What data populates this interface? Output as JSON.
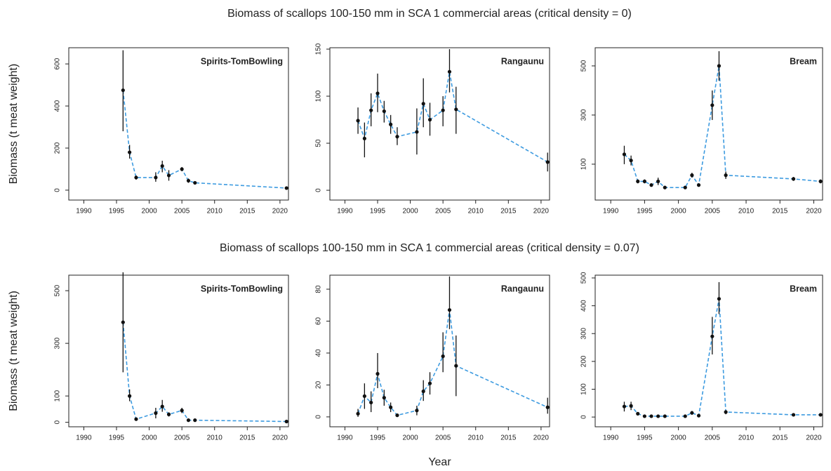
{
  "chart_data": [
    {
      "type": "line",
      "suptitle": "Biomass of scallops 100-150 mm in SCA 1 commercial areas (critical density = 0)",
      "ylabel": "Biomass (t meat weight)",
      "title": "Spirits-TomBowling",
      "color": "#3d9be0",
      "x": [
        1996,
        1997,
        1998,
        2001,
        2002,
        2003,
        2005,
        2006,
        2007,
        2021
      ],
      "values": [
        475,
        180,
        60,
        60,
        115,
        70,
        100,
        45,
        35,
        10
      ],
      "lower": [
        280,
        150,
        50,
        40,
        85,
        45,
        90,
        35,
        28,
        2
      ],
      "upper": [
        665,
        215,
        70,
        85,
        140,
        95,
        110,
        55,
        42,
        18
      ],
      "xlim": [
        1987.7,
        2021.3
      ],
      "xticks": [
        1990,
        1995,
        2000,
        2005,
        2010,
        2015,
        2020
      ],
      "ylim": [
        -47,
        677
      ],
      "yticks": [
        0,
        200,
        400,
        600
      ]
    },
    {
      "type": "line",
      "title": "Rangaunu",
      "color": "#3d9be0",
      "x": [
        1992,
        1993,
        1994,
        1995,
        1996,
        1997,
        1998,
        2001,
        2002,
        2003,
        2005,
        2006,
        2007,
        2021
      ],
      "values": [
        74,
        55,
        85,
        103,
        84,
        70,
        57,
        62,
        92,
        75,
        85,
        126,
        86,
        30
      ],
      "lower": [
        60,
        35,
        68,
        83,
        72,
        60,
        48,
        38,
        67,
        58,
        68,
        104,
        60,
        20
      ],
      "upper": [
        88,
        72,
        103,
        124,
        95,
        80,
        67,
        87,
        119,
        93,
        100,
        150,
        110,
        40
      ],
      "xlim": [
        1987.7,
        2021.3
      ],
      "xticks": [
        1990,
        1995,
        2000,
        2005,
        2010,
        2015,
        2020
      ],
      "ylim": [
        -10.4,
        151.5
      ],
      "yticks": [
        0,
        50,
        100,
        150
      ]
    },
    {
      "type": "line",
      "title": "Bream",
      "color": "#3d9be0",
      "x": [
        1992,
        1993,
        1994,
        1995,
        1996,
        1997,
        1998,
        2001,
        2002,
        2003,
        2005,
        2006,
        2007,
        2017,
        2021
      ],
      "values": [
        140,
        115,
        30,
        30,
        15,
        30,
        5,
        5,
        55,
        15,
        340,
        500,
        55,
        40,
        30
      ],
      "lower": [
        100,
        95,
        22,
        22,
        8,
        15,
        1,
        1,
        45,
        8,
        280,
        440,
        40,
        32,
        22
      ],
      "upper": [
        175,
        135,
        38,
        38,
        22,
        45,
        9,
        9,
        65,
        22,
        400,
        560,
        70,
        48,
        38
      ],
      "xlim": [
        1987.7,
        2021.3
      ],
      "xticks": [
        1990,
        1995,
        2000,
        2005,
        2010,
        2015,
        2020
      ],
      "ylim": [
        -46,
        574
      ],
      "yticks": [
        100,
        300,
        500
      ]
    },
    {
      "type": "line",
      "suptitle": "Biomass of scallops 100-150 mm in SCA 1 commercial areas (critical density = 0.07)",
      "ylabel": "Biomass (t meat weight)",
      "title": "Spirits-TomBowling",
      "color": "#3d9be0",
      "x": [
        1996,
        1997,
        1998,
        2001,
        2002,
        2003,
        2005,
        2006,
        2007,
        2021
      ],
      "values": [
        380,
        100,
        12,
        35,
        60,
        30,
        45,
        8,
        8,
        3
      ],
      "lower": [
        190,
        80,
        6,
        15,
        40,
        22,
        35,
        3,
        3,
        0
      ],
      "upper": [
        570,
        125,
        18,
        55,
        85,
        38,
        55,
        13,
        13,
        6
      ],
      "xlim": [
        1987.7,
        2021.3
      ],
      "xticks": [
        1990,
        1995,
        2000,
        2005,
        2010,
        2015,
        2020
      ],
      "ylim": [
        -17,
        559
      ],
      "yticks": [
        0,
        100,
        300,
        500
      ]
    },
    {
      "type": "line",
      "title": "Rangaunu",
      "xlabel": "Year",
      "color": "#3d9be0",
      "x": [
        1992,
        1993,
        1994,
        1995,
        1996,
        1997,
        1998,
        2001,
        2002,
        2003,
        2005,
        2006,
        2007,
        2021
      ],
      "values": [
        2,
        13,
        9,
        27,
        12,
        6,
        1,
        4,
        16,
        21,
        38,
        67,
        32,
        6
      ],
      "lower": [
        0,
        5,
        3,
        18,
        7,
        3,
        0,
        1,
        10,
        14,
        28,
        55,
        13,
        2
      ],
      "upper": [
        5,
        21,
        16,
        40,
        17,
        9,
        2,
        7,
        23,
        28,
        53,
        88,
        51,
        12
      ],
      "xlim": [
        1987.7,
        2021.3
      ],
      "xticks": [
        1990,
        1995,
        2000,
        2005,
        2010,
        2015,
        2020
      ],
      "ylim": [
        -6.2,
        88.8
      ],
      "yticks": [
        0,
        20,
        40,
        60,
        80
      ]
    },
    {
      "type": "line",
      "title": "Bream",
      "color": "#3d9be0",
      "x": [
        1992,
        1993,
        1994,
        1995,
        1996,
        1997,
        1998,
        2001,
        2002,
        2003,
        2005,
        2006,
        2007,
        2017,
        2021
      ],
      "values": [
        38,
        40,
        12,
        3,
        3,
        3,
        3,
        3,
        15,
        5,
        290,
        425,
        18,
        8,
        8
      ],
      "lower": [
        20,
        25,
        6,
        0,
        0,
        0,
        0,
        0,
        8,
        1,
        225,
        370,
        10,
        4,
        4
      ],
      "upper": [
        55,
        55,
        18,
        6,
        6,
        6,
        6,
        6,
        22,
        9,
        360,
        485,
        25,
        12,
        12
      ],
      "xlim": [
        1987.7,
        2021.3
      ],
      "xticks": [
        1990,
        1995,
        2000,
        2005,
        2010,
        2015,
        2020
      ],
      "ylim": [
        -35,
        510
      ],
      "yticks": [
        0,
        100,
        200,
        300,
        400,
        500
      ]
    }
  ]
}
